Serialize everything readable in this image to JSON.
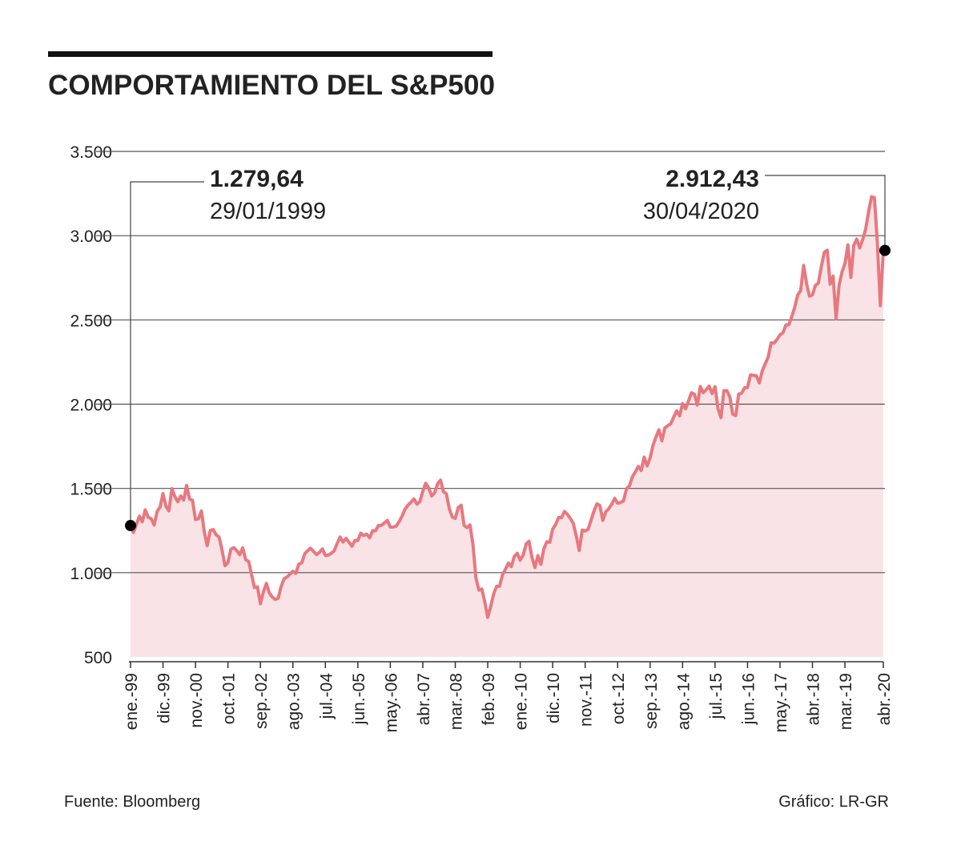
{
  "chart_data": {
    "type": "line",
    "title": "COMPORTAMIENTO DEL S&P500",
    "source": "Fuente: Bloomberg",
    "credit": "Gráfico: LR-GR",
    "annotations": [
      {
        "text": "1.279,64",
        "date": "29/01/1999"
      },
      {
        "text": "2.912,43",
        "date": "30/04/2020"
      }
    ],
    "color": "#e8787f",
    "fill": "#f9e3e6",
    "grid": true,
    "ylim": [
      500,
      3500
    ],
    "yticks": [
      500,
      {
        "value": 1000,
        "label": "1.000"
      },
      {
        "value": 1500,
        "label": "1.500"
      },
      {
        "value": 2000,
        "label": "2.000"
      },
      {
        "value": 2500,
        "label": "2.500"
      },
      {
        "value": 3000,
        "label": "3.000"
      },
      {
        "value": 3500,
        "label": "3.500"
      }
    ],
    "categories": [
      "ene.-99",
      null,
      null,
      null,
      null,
      null,
      null,
      null,
      null,
      null,
      null,
      "dic.-99",
      null,
      null,
      null,
      null,
      null,
      null,
      null,
      null,
      null,
      null,
      "nov.-00",
      null,
      null,
      null,
      null,
      null,
      null,
      null,
      null,
      null,
      null,
      "oct.-01",
      null,
      null,
      null,
      null,
      null,
      null,
      null,
      null,
      null,
      null,
      "sep.-02",
      null,
      null,
      null,
      null,
      null,
      null,
      null,
      null,
      null,
      null,
      "ago.-03",
      null,
      null,
      null,
      null,
      null,
      null,
      null,
      null,
      null,
      null,
      "jul.-04",
      null,
      null,
      null,
      null,
      null,
      null,
      null,
      null,
      null,
      null,
      "jun.-05",
      null,
      null,
      null,
      null,
      null,
      null,
      null,
      null,
      null,
      null,
      "may.-06",
      null,
      null,
      null,
      null,
      null,
      null,
      null,
      null,
      null,
      null,
      "abr.-07",
      null,
      null,
      null,
      null,
      null,
      null,
      null,
      null,
      null,
      null,
      "mar.-08",
      null,
      null,
      null,
      null,
      null,
      null,
      null,
      null,
      null,
      null,
      "feb.-09",
      null,
      null,
      null,
      null,
      null,
      null,
      null,
      null,
      null,
      null,
      "ene.-10",
      null,
      null,
      null,
      null,
      null,
      null,
      null,
      null,
      null,
      null,
      "dic.-10",
      null,
      null,
      null,
      null,
      null,
      null,
      null,
      null,
      null,
      null,
      "nov.-11",
      null,
      null,
      null,
      null,
      null,
      null,
      null,
      null,
      null,
      null,
      "oct.-12",
      null,
      null,
      null,
      null,
      null,
      null,
      null,
      null,
      null,
      null,
      "sep.-13",
      null,
      null,
      null,
      null,
      null,
      null,
      null,
      null,
      null,
      null,
      "ago.-14",
      null,
      null,
      null,
      null,
      null,
      null,
      null,
      null,
      null,
      null,
      "jul.-15",
      null,
      null,
      null,
      null,
      null,
      null,
      null,
      null,
      null,
      null,
      "jun.-16",
      null,
      null,
      null,
      null,
      null,
      null,
      null,
      null,
      null,
      null,
      "may.-17",
      null,
      null,
      null,
      null,
      null,
      null,
      null,
      null,
      null,
      null,
      "abr.-18",
      null,
      null,
      null,
      null,
      null,
      null,
      null,
      null,
      null,
      null,
      "mar.-19",
      null,
      null,
      null,
      null,
      null,
      null,
      null,
      null,
      null,
      null,
      null,
      null,
      "abr.-20"
    ],
    "values": [
      1279.64,
      1238.33,
      1286.37,
      1335.18,
      1301.84,
      1372.71,
      1328.72,
      1320.41,
      1282.71,
      1362.93,
      1388.91,
      1469.25,
      1394.46,
      1366.42,
      1498.58,
      1452.43,
      1420.6,
      1454.6,
      1430.83,
      1517.68,
      1436.51,
      1429.4,
      1314.95,
      1320.28,
      1366.01,
      1239.94,
      1160.33,
      1249.46,
      1255.82,
      1224.42,
      1211.23,
      1133.58,
      1040.94,
      1059.78,
      1139.45,
      1148.08,
      1130.2,
      1106.73,
      1147.39,
      1076.92,
      1067.14,
      989.82,
      911.62,
      916.07,
      815.28,
      885.76,
      936.31,
      879.82,
      855.7,
      841.15,
      848.18,
      916.92,
      963.59,
      974.5,
      990.31,
      1008.01,
      995.97,
      1050.71,
      1058.2,
      1111.92,
      1131.13,
      1144.94,
      1126.21,
      1107.3,
      1120.68,
      1140.84,
      1101.72,
      1104.24,
      1114.58,
      1130.2,
      1173.82,
      1211.92,
      1181.27,
      1203.6,
      1180.59,
      1156.85,
      1191.5,
      1191.33,
      1234.18,
      1220.33,
      1228.81,
      1207.01,
      1249.48,
      1248.29,
      1280.08,
      1280.66,
      1294.83,
      1310.61,
      1270.09,
      1270.2,
      1276.66,
      1303.82,
      1335.85,
      1377.94,
      1400.63,
      1418.3,
      1438.24,
      1406.82,
      1420.86,
      1482.37,
      1530.62,
      1503.35,
      1455.27,
      1473.99,
      1526.75,
      1549.38,
      1481.14,
      1468.36,
      1378.55,
      1330.63,
      1322.7,
      1385.59,
      1400.38,
      1280,
      1267.38,
      1282.83,
      1166.36,
      968.75,
      896.24,
      903.25,
      825.88,
      735.09,
      797.87,
      872.81,
      919.14,
      919.32,
      987.48,
      1020.62,
      1057.08,
      1036.19,
      1095.63,
      1115.1,
      1073.87,
      1104.49,
      1169.43,
      1186.69,
      1089.41,
      1030.71,
      1101.6,
      1049.33,
      1141.2,
      1183.26,
      1180.55,
      1257.64,
      1286.12,
      1327.22,
      1325.83,
      1363.61,
      1345.2,
      1320.64,
      1292.28,
      1218.89,
      1131.42,
      1253.3,
      1246.96,
      1257.6,
      1312.41,
      1365.68,
      1408.47,
      1397.91,
      1310.33,
      1362.16,
      1379.32,
      1406.58,
      1440.67,
      1412.16,
      1416.18,
      1426.19,
      1498.11,
      1514.68,
      1569.19,
      1597.57,
      1630.74,
      1606.28,
      1685.73,
      1632.97,
      1681.55,
      1756.54,
      1805.81,
      1848.36,
      1782.59,
      1859.45,
      1872.34,
      1883.95,
      1923.57,
      1960.23,
      1930.67,
      2003.37,
      1972.29,
      2018.05,
      2067.56,
      2058.9,
      1994.99,
      2104.5,
      2067.89,
      2085.51,
      2107.39,
      2063.11,
      2103.84,
      1972.18,
      1920.03,
      2079.36,
      2080.41,
      2043.94,
      1940.24,
      1932.23,
      2059.74,
      2065.3,
      2096.95,
      2098.86,
      2173.6,
      2170.95,
      2168.27,
      2126.15,
      2198.81,
      2238.83,
      2278.87,
      2363.64,
      2362.72,
      2384.2,
      2411.8,
      2423.41,
      2470.3,
      2471.65,
      2519.36,
      2575.26,
      2647.58,
      2673.61,
      2823.81,
      2713.83,
      2640.87,
      2648.05,
      2705.27,
      2718.37,
      2816.29,
      2901.52,
      2913.98,
      2711.74,
      2760.17,
      2506.85,
      2704.1,
      2784.49,
      2834.4,
      2945.83,
      2752.06,
      2941.76,
      2980.38,
      2926.46,
      2976.74,
      3037.56,
      3140.98,
      3230.78,
      3225.52,
      2954.22,
      2584.59,
      2912.43
    ]
  }
}
